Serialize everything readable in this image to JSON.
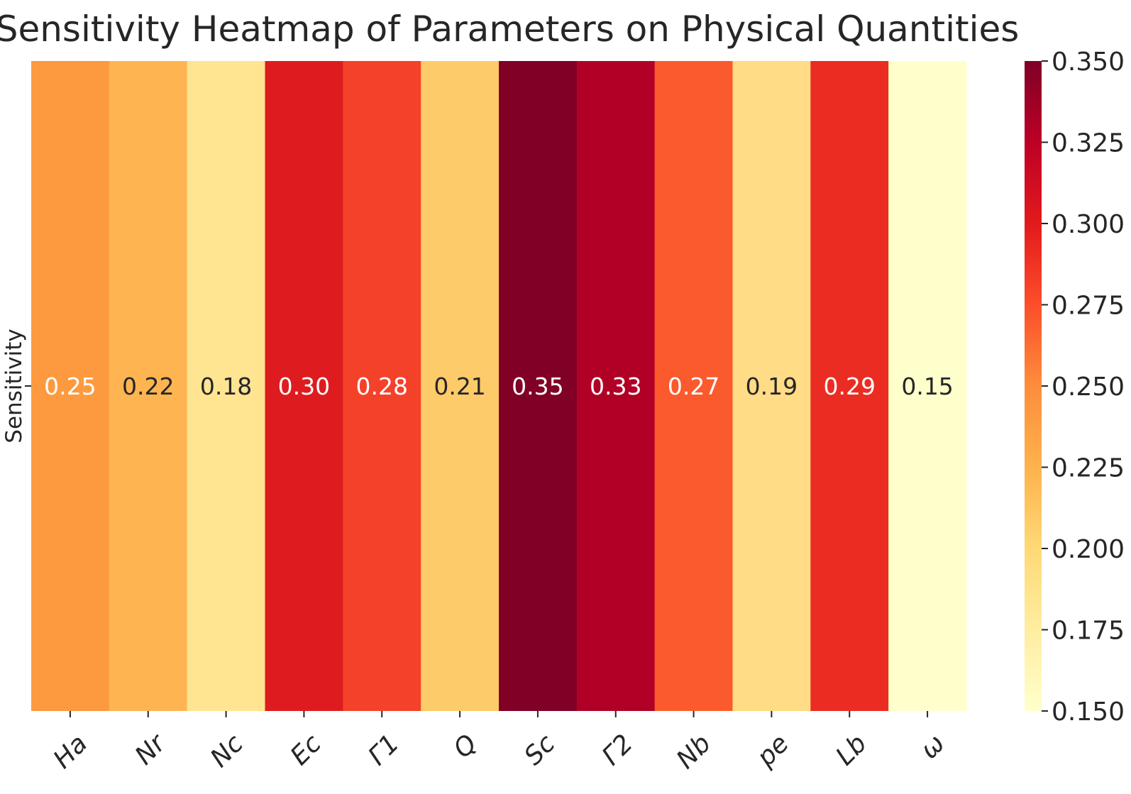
{
  "chart_data": {
    "type": "heatmap",
    "title": "Sensitivity Heatmap of Parameters on Physical Quantities",
    "xlabel": "",
    "ylabel": "",
    "row_labels": [
      "Sensitivity"
    ],
    "categories": [
      "Ha",
      "Nr",
      "Nc",
      "Ec",
      "Γ1",
      "Q",
      "Sc",
      "Γ2",
      "Nb",
      "pe",
      "Lb",
      "ω"
    ],
    "values": [
      [
        0.25,
        0.22,
        0.18,
        0.3,
        0.28,
        0.21,
        0.35,
        0.33,
        0.27,
        0.19,
        0.29,
        0.15
      ]
    ],
    "value_labels": [
      "0.25",
      "0.22",
      "0.18",
      "0.30",
      "0.28",
      "0.21",
      "0.35",
      "0.33",
      "0.27",
      "0.19",
      "0.29",
      "0.15"
    ],
    "colormap": "YlOrRd",
    "colorbar": {
      "range": [
        0.15,
        0.35
      ],
      "ticks": [
        "0.150",
        "0.175",
        "0.200",
        "0.225",
        "0.250",
        "0.275",
        "0.300",
        "0.325",
        "0.350"
      ]
    },
    "colors": {
      "0.25": "#fd9a3f",
      "0.22": "#feb551",
      "0.18": "#ffe592",
      "0.30": "#de1c20",
      "0.28": "#f4412a",
      "0.21": "#fecb6a",
      "0.35": "#800026",
      "0.33": "#b10026",
      "0.27": "#fb5a2d",
      "0.19": "#ffdc85",
      "0.29": "#eb2c23",
      "0.15": "#ffffcc"
    }
  }
}
